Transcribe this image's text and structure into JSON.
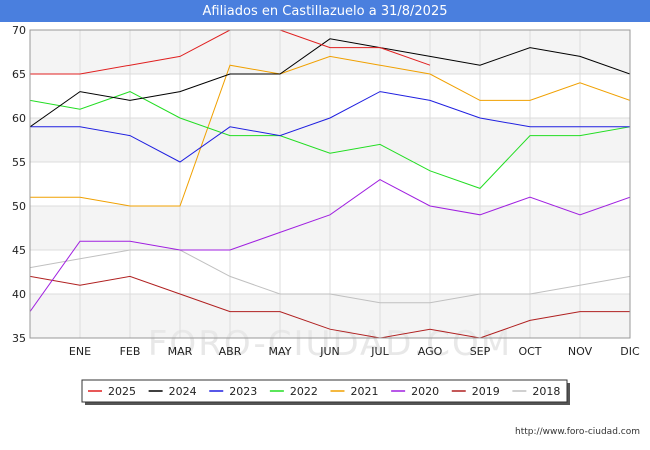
{
  "chart_data": {
    "type": "line",
    "title": "Afiliados en Castillazuelo a 31/8/2025",
    "categories": [
      "",
      "ENE",
      "FEB",
      "MAR",
      "ABR",
      "MAY",
      "JUN",
      "JUL",
      "AGO",
      "SEP",
      "OCT",
      "NOV",
      "DIC"
    ],
    "ylim": [
      35,
      70
    ],
    "yticks": [
      35,
      40,
      45,
      50,
      55,
      60,
      65,
      70
    ],
    "xlabel": "",
    "ylabel": "",
    "grid": true,
    "legend_position": "bottom",
    "series": [
      {
        "name": "2025",
        "color": "#e02020",
        "values": [
          65,
          65,
          66,
          67,
          70,
          70,
          68,
          68,
          66,
          null,
          null,
          null,
          null
        ]
      },
      {
        "name": "2024",
        "color": "#000000",
        "values": [
          59,
          63,
          62,
          63,
          65,
          65,
          69,
          68,
          67,
          66,
          68,
          67,
          65
        ]
      },
      {
        "name": "2023",
        "color": "#1f1fe0",
        "values": [
          59,
          59,
          58,
          55,
          59,
          58,
          60,
          63,
          62,
          60,
          59,
          59,
          59
        ]
      },
      {
        "name": "2022",
        "color": "#22dd22",
        "values": [
          62,
          61,
          63,
          60,
          58,
          58,
          56,
          57,
          54,
          52,
          58,
          58,
          59
        ]
      },
      {
        "name": "2021",
        "color": "#f0a000",
        "values": [
          51,
          51,
          50,
          50,
          66,
          65,
          67,
          66,
          65,
          62,
          62,
          64,
          62
        ]
      },
      {
        "name": "2020",
        "color": "#a020e0",
        "values": [
          38,
          46,
          46,
          45,
          45,
          47,
          49,
          53,
          50,
          49,
          51,
          49,
          51
        ]
      },
      {
        "name": "2019",
        "color": "#b02020",
        "values": [
          42,
          41,
          42,
          40,
          38,
          38,
          36,
          35,
          36,
          35,
          37,
          38,
          38
        ]
      },
      {
        "name": "2018",
        "color": "#c0c0c0",
        "values": [
          43,
          44,
          45,
          45,
          42,
          40,
          40,
          39,
          39,
          40,
          40,
          41,
          42
        ]
      }
    ]
  },
  "footer": {
    "url": "http://www.foro-ciudad.com"
  },
  "watermark": "FORO-CIUDAD.COM"
}
